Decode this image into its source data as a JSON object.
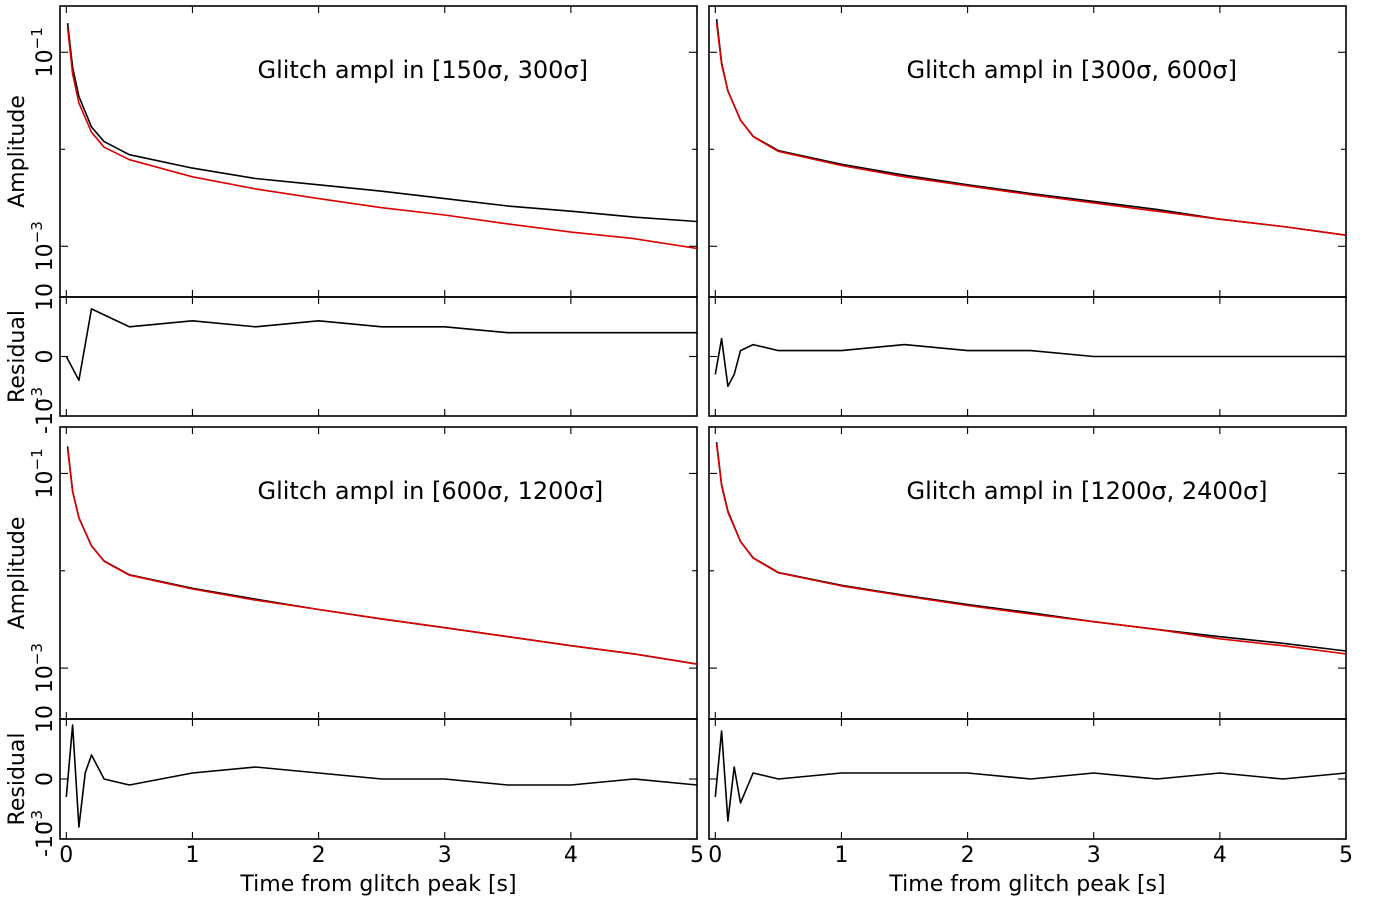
{
  "chart_data": {
    "type": "line",
    "xlabel": "Time from glitch peak [s]",
    "x_ticks": [
      0,
      1,
      2,
      3,
      4,
      5
    ],
    "x_tick_labels": [
      "0",
      "1",
      "2",
      "3",
      "4",
      "5"
    ],
    "xlim": [
      -0.05,
      5
    ],
    "amplitude_ylabel": "Amplitude",
    "amplitude_scale": "log",
    "amplitude_ylim": [
      0.0003,
      0.3
    ],
    "amplitude_ticks": [
      {
        "value": 0.1,
        "base": "10",
        "exp": "−1"
      },
      {
        "value": 0.001,
        "base": "10",
        "exp": "−3"
      }
    ],
    "residual_ylabel": "Residual",
    "residual_unit_exp": "−3",
    "residual_ylim": [
      -10,
      10
    ],
    "residual_ticks": [
      {
        "value": 10,
        "label": "10"
      },
      {
        "value": 0,
        "label": "0"
      },
      {
        "value": -10,
        "label": "-10"
      }
    ],
    "series_colors": {
      "data": "#000000",
      "model": "#dd0000"
    },
    "panels": [
      {
        "annotation": "Glitch ampl in [150σ, 300σ]",
        "model_amplitude": {
          "x": [
            0.01,
            0.05,
            0.1,
            0.2,
            0.3,
            0.5,
            1,
            1.5,
            2,
            2.5,
            3,
            3.5,
            4,
            4.5,
            5
          ],
          "y": [
            0.18,
            0.06,
            0.03,
            0.015,
            0.0105,
            0.0078,
            0.0052,
            0.0039,
            0.0031,
            0.0025,
            0.0021,
            0.0017,
            0.0014,
            0.0012,
            0.00095
          ]
        },
        "data_amplitude": {
          "x": [
            0.01,
            0.05,
            0.1,
            0.2,
            0.3,
            0.5,
            1,
            1.5,
            2,
            2.5,
            3,
            3.5,
            4,
            4.5,
            5
          ],
          "y": [
            0.2,
            0.07,
            0.035,
            0.017,
            0.012,
            0.0088,
            0.0064,
            0.005,
            0.0043,
            0.0037,
            0.0031,
            0.0026,
            0.0023,
            0.002,
            0.0018
          ]
        },
        "residual": {
          "x": [
            0,
            0.05,
            0.1,
            0.15,
            0.2,
            0.3,
            0.5,
            1,
            1.5,
            2,
            2.5,
            3,
            3.5,
            4,
            4.5,
            5
          ],
          "y": [
            0,
            -2,
            -4,
            2,
            8,
            7,
            5,
            6,
            5,
            6,
            5,
            5,
            4,
            4,
            4,
            4
          ]
        }
      },
      {
        "annotation": "Glitch ampl in [300σ, 600σ]",
        "model_amplitude": {
          "x": [
            0.01,
            0.05,
            0.1,
            0.2,
            0.3,
            0.5,
            1,
            1.5,
            2,
            2.5,
            3,
            3.5,
            4,
            4.5,
            5
          ],
          "y": [
            0.2,
            0.075,
            0.04,
            0.02,
            0.0135,
            0.0095,
            0.0068,
            0.0052,
            0.0042,
            0.0034,
            0.0028,
            0.0023,
            0.0019,
            0.0016,
            0.0013
          ]
        },
        "data_amplitude": {
          "x": [
            0.01,
            0.05,
            0.1,
            0.2,
            0.3,
            0.5,
            1,
            1.5,
            2,
            2.5,
            3,
            3.5,
            4,
            4.5,
            5
          ],
          "y": [
            0.22,
            0.078,
            0.04,
            0.02,
            0.0136,
            0.0097,
            0.007,
            0.0054,
            0.0043,
            0.0035,
            0.0029,
            0.0024,
            0.0019,
            0.0016,
            0.0013
          ]
        },
        "residual": {
          "x": [
            0,
            0.05,
            0.1,
            0.15,
            0.2,
            0.3,
            0.5,
            1,
            1.5,
            2,
            2.5,
            3,
            3.5,
            4,
            4.5,
            5
          ],
          "y": [
            -3,
            3,
            -5,
            -3,
            1,
            2,
            1,
            1,
            2,
            1,
            1,
            0,
            0,
            0,
            0,
            0
          ]
        }
      },
      {
        "annotation": "Glitch ampl in [600σ, 1200σ]",
        "model_amplitude": {
          "x": [
            0.01,
            0.05,
            0.1,
            0.2,
            0.3,
            0.5,
            1,
            1.5,
            2,
            2.5,
            3,
            3.5,
            4,
            4.5,
            5
          ],
          "y": [
            0.18,
            0.065,
            0.035,
            0.018,
            0.0125,
            0.009,
            0.0065,
            0.005,
            0.004,
            0.0032,
            0.0026,
            0.0021,
            0.0017,
            0.0014,
            0.0011
          ]
        },
        "data_amplitude": {
          "x": [
            0.01,
            0.05,
            0.1,
            0.2,
            0.3,
            0.5,
            1,
            1.5,
            2,
            2.5,
            3,
            3.5,
            4,
            4.5,
            5
          ],
          "y": [
            0.19,
            0.066,
            0.035,
            0.018,
            0.0126,
            0.0091,
            0.0066,
            0.0051,
            0.004,
            0.0032,
            0.0026,
            0.0021,
            0.0017,
            0.0014,
            0.0011
          ]
        },
        "residual": {
          "x": [
            0,
            0.05,
            0.1,
            0.15,
            0.2,
            0.3,
            0.5,
            1,
            1.5,
            2,
            2.5,
            3,
            3.5,
            4,
            4.5,
            5
          ],
          "y": [
            -3,
            9,
            -8,
            1,
            4,
            0,
            -1,
            1,
            2,
            1,
            0,
            0,
            -1,
            -1,
            0,
            -1
          ]
        }
      },
      {
        "annotation": "Glitch ampl in [1200σ, 2400σ]",
        "model_amplitude": {
          "x": [
            0.01,
            0.05,
            0.1,
            0.2,
            0.3,
            0.5,
            1,
            1.5,
            2,
            2.5,
            3,
            3.5,
            4,
            4.5,
            5
          ],
          "y": [
            0.2,
            0.075,
            0.04,
            0.02,
            0.0135,
            0.0095,
            0.007,
            0.0055,
            0.0044,
            0.0036,
            0.003,
            0.0025,
            0.002,
            0.0017,
            0.0014
          ]
        },
        "data_amplitude": {
          "x": [
            0.01,
            0.05,
            0.1,
            0.2,
            0.3,
            0.5,
            1,
            1.5,
            2,
            2.5,
            3,
            3.5,
            4,
            4.5,
            5
          ],
          "y": [
            0.21,
            0.077,
            0.041,
            0.02,
            0.0136,
            0.0096,
            0.0071,
            0.0056,
            0.0045,
            0.0037,
            0.003,
            0.0025,
            0.0021,
            0.0018,
            0.0015
          ]
        },
        "residual": {
          "x": [
            0,
            0.05,
            0.1,
            0.15,
            0.2,
            0.3,
            0.5,
            1,
            1.5,
            2,
            2.5,
            3,
            3.5,
            4,
            4.5,
            5
          ],
          "y": [
            -3,
            8,
            -7,
            2,
            -4,
            1,
            0,
            1,
            1,
            1,
            0,
            1,
            0,
            1,
            0,
            1
          ]
        }
      }
    ]
  }
}
